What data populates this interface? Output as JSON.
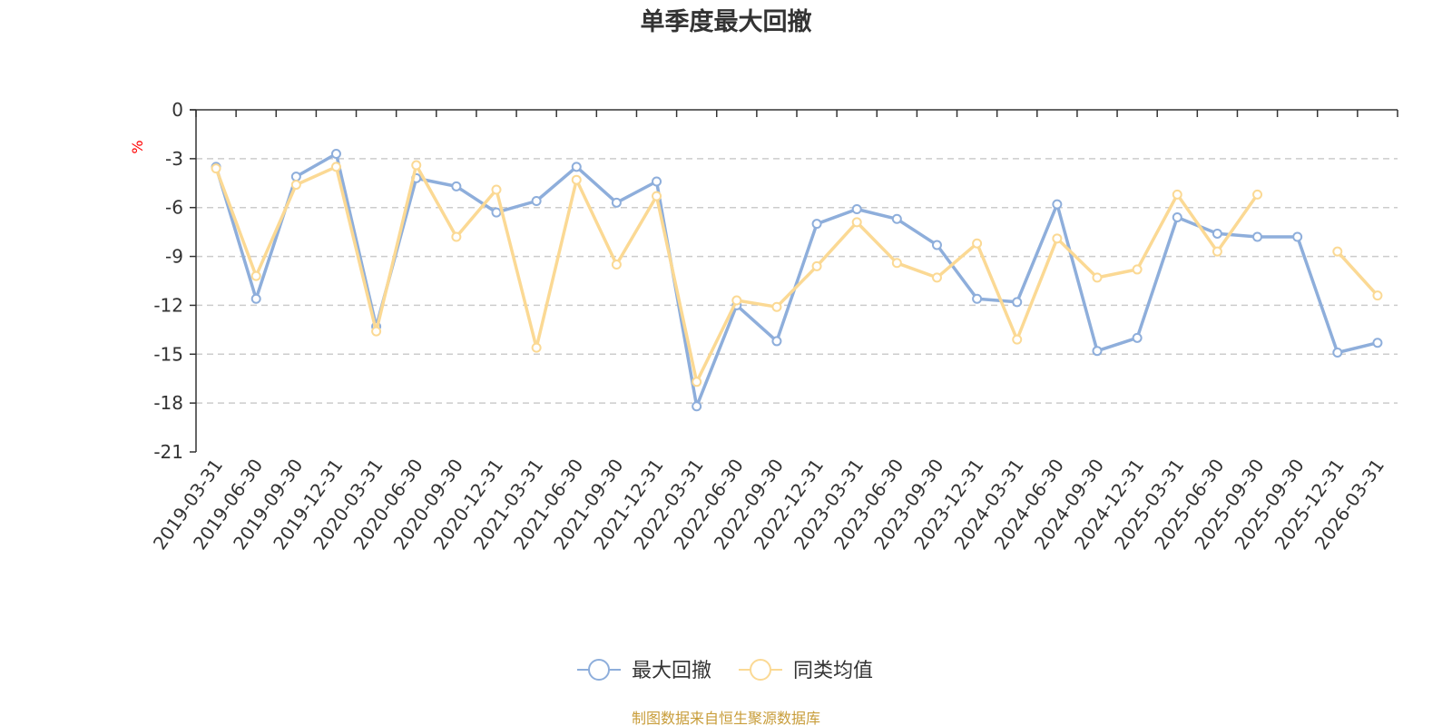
{
  "chart_data": {
    "type": "line",
    "title": "单季度最大回撤",
    "ylabel": "%",
    "ylim": [
      -21,
      0
    ],
    "y_ticks": [
      0,
      -3,
      -6,
      -9,
      -12,
      -15,
      -18,
      -21
    ],
    "grid": true,
    "legend_position": "bottom",
    "categories": [
      "2019-03-31",
      "2019-06-30",
      "2019-09-30",
      "2019-12-31",
      "2020-03-31",
      "2020-06-30",
      "2020-09-30",
      "2020-12-31",
      "2021-03-31",
      "2021-06-30",
      "2021-09-30",
      "2021-12-31",
      "2022-03-31",
      "2022-06-30",
      "2022-09-30",
      "2022-12-31",
      "2023-03-31",
      "2023-06-30",
      "2023-09-30",
      "2023-12-31",
      "2024-03-31",
      "2024-06-30",
      "2024-09-30",
      "2024-12-31",
      "2025-03-31",
      "2025-06-30",
      "2025-09-30",
      "2025-09-30",
      "2025-12-31",
      "2026-03-31"
    ],
    "series": [
      {
        "name": "最大回撤",
        "color": "#8eaedb",
        "values": [
          -3.5,
          -11.6,
          -4.1,
          -2.7,
          -13.3,
          -4.2,
          -4.7,
          -6.3,
          -5.6,
          -3.5,
          -5.7,
          -4.4,
          -18.2,
          -12.0,
          -14.2,
          -7.0,
          -6.1,
          -6.7,
          -8.3,
          -11.6,
          -11.8,
          -5.8,
          -14.8,
          -14.0,
          -6.6,
          -7.6,
          -7.8,
          -7.8,
          -14.9,
          -14.3
        ]
      },
      {
        "name": "同类均值",
        "color": "#fbd994",
        "values": [
          -3.6,
          -10.2,
          -4.6,
          -3.5,
          -13.6,
          -3.4,
          -7.8,
          -4.9,
          -14.6,
          -4.3,
          -9.5,
          -5.3,
          -16.7,
          -11.7,
          -12.1,
          -9.6,
          -6.9,
          -9.4,
          -10.3,
          -8.2,
          -14.1,
          -7.9,
          -10.3,
          -9.8,
          -5.2,
          -8.7,
          -5.2,
          null,
          -8.7,
          -11.4
        ]
      }
    ]
  },
  "source_note": "制图数据来自恒生聚源数据库",
  "colors": {
    "axis": "#333333",
    "grid": "#cccccc",
    "unit_label": "#ff0000",
    "source_note": "#c89d3a"
  }
}
